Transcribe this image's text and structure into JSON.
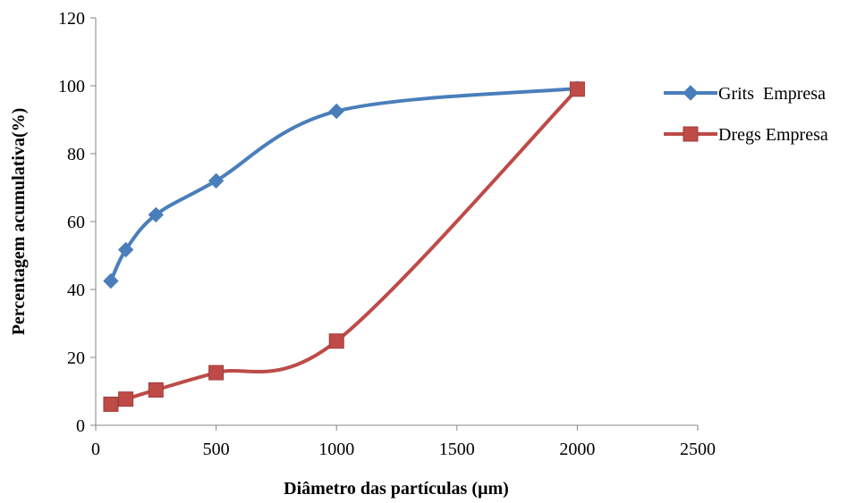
{
  "chart_data": {
    "type": "scatter",
    "title": "",
    "xlabel": "Diâmetro das partículas (µm)",
    "ylabel": "Percentagem acumulativa(%)",
    "xlim": [
      0,
      2500
    ],
    "ylim": [
      0,
      120
    ],
    "xticks": [
      0,
      500,
      1000,
      1500,
      2000,
      2500
    ],
    "yticks": [
      0,
      20,
      40,
      60,
      80,
      100,
      120
    ],
    "grid": false,
    "legend_position": "right",
    "line_style": "smoothed",
    "series": [
      {
        "name": "Grits  Empresa",
        "color": "#4a7ebb",
        "marker": "diamond",
        "x": [
          63,
          125,
          250,
          500,
          1000,
          2000
        ],
        "y": [
          42.5,
          51.7,
          62.0,
          72.0,
          92.5,
          99.2
        ]
      },
      {
        "name": "Dregs Empresa",
        "color": "#be4b48",
        "marker": "square",
        "x": [
          63,
          125,
          250,
          500,
          1000,
          2000
        ],
        "y": [
          6.2,
          7.7,
          10.4,
          15.5,
          24.8,
          99.0
        ]
      }
    ]
  }
}
